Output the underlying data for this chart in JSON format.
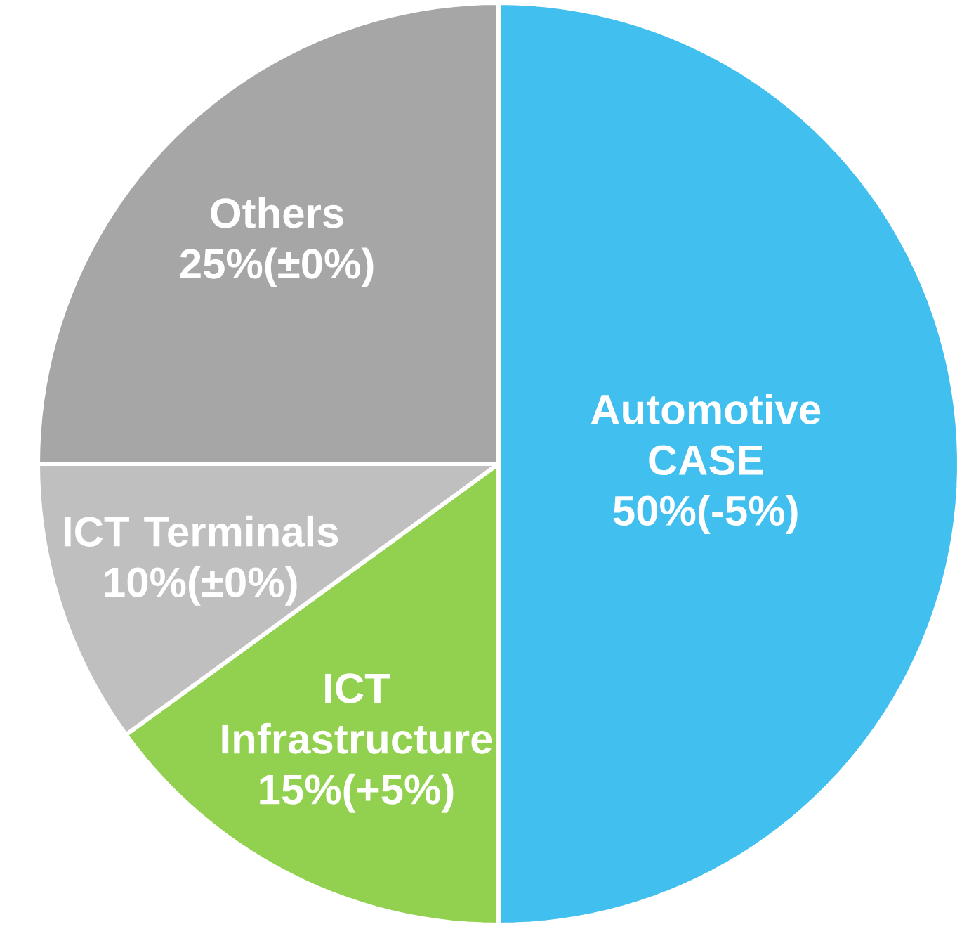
{
  "chart_data": {
    "type": "pie",
    "categories": [
      "Automotive CASE",
      "ICT Infrastructure",
      "ICT Terminals",
      "Others"
    ],
    "values": [
      50,
      15,
      10,
      25
    ],
    "value_labels": [
      "50%(-5%)",
      "15%(+5%)",
      "10%(±0%)",
      "25%(±0%)"
    ],
    "colors": [
      "#41bfef",
      "#92d050",
      "#bfbfbf",
      "#a6a6a6"
    ]
  }
}
